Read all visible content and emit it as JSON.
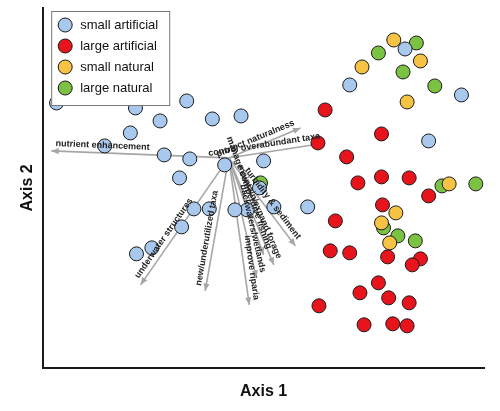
{
  "chart_data": {
    "type": "scatter",
    "x_label": "Axis 1",
    "y_label": "Axis 2",
    "xlim": [
      0,
      430
    ],
    "ylim": [
      0,
      360
    ],
    "tick_labels": false,
    "grid": false,
    "legend": "top-left",
    "series": [
      {
        "name": "small artificial",
        "color": "#a8c8ee",
        "x": [
          13,
          90,
          114,
          140,
          165,
          60,
          85,
          118,
          133,
          143,
          177,
          193,
          215,
          211,
          199,
          225,
          258,
          147,
          162,
          187,
          135,
          106,
          91,
          353,
          299,
          408,
          376
        ],
        "y": [
          265,
          260,
          247,
          267,
          249,
          222,
          235,
          213,
          190,
          209,
          203,
          252,
          207,
          180,
          158,
          161,
          161,
          159,
          159,
          158,
          141,
          120,
          114,
          319,
          283,
          273,
          227
        ]
      },
      {
        "name": "large artificial",
        "color": "#e8141b",
        "x": [
          268,
          275,
          330,
          296,
          307,
          330,
          357,
          285,
          331,
          376,
          280,
          299,
          336,
          368,
          360,
          327,
          309,
          337,
          357,
          341,
          355,
          269,
          313
        ],
        "y": [
          225,
          258,
          234,
          211,
          185,
          191,
          190,
          147,
          163,
          172,
          117,
          115,
          111,
          109,
          103,
          85,
          75,
          70,
          65,
          44,
          42,
          62,
          43
        ]
      },
      {
        "name": "small natural",
        "color": "#f6c344",
        "x": [
          342,
          368,
          311,
          355,
          344,
          330,
          396,
          338
        ],
        "y": [
          328,
          307,
          301,
          266,
          155,
          145,
          184,
          125
        ]
      },
      {
        "name": "large natural",
        "color": "#7cc242",
        "x": [
          327,
          364,
          351,
          382,
          212,
          332,
          346,
          389,
          422,
          363
        ],
        "y": [
          315,
          325,
          296,
          282,
          185,
          140,
          132,
          182,
          184,
          127
        ]
      }
    ],
    "vectors": {
      "origin": {
        "x": 181,
        "y": 210
      },
      "items": [
        {
          "label": "nutrient enhancement",
          "x": 8,
          "y": 217
        },
        {
          "label": "protect naturalness",
          "x": 251,
          "y": 240
        },
        {
          "label": "control overabundant taxa",
          "x": 275,
          "y": 225
        },
        {
          "label": "underwater structures",
          "x": 95,
          "y": 83
        },
        {
          "label": "new/underutilized taxa",
          "x": 158,
          "y": 77
        },
        {
          "label": "improve riparia",
          "x": 201,
          "y": 63
        },
        {
          "label": "backwaters/wetlands",
          "x": 208,
          "y": 90
        },
        {
          "label": "manage competitive fishing",
          "x": 215,
          "y": 113
        },
        {
          "label": "maintain/expand forage",
          "x": 225,
          "y": 103
        },
        {
          "label": "turbidity & sediment",
          "x": 246,
          "y": 122
        }
      ]
    }
  }
}
